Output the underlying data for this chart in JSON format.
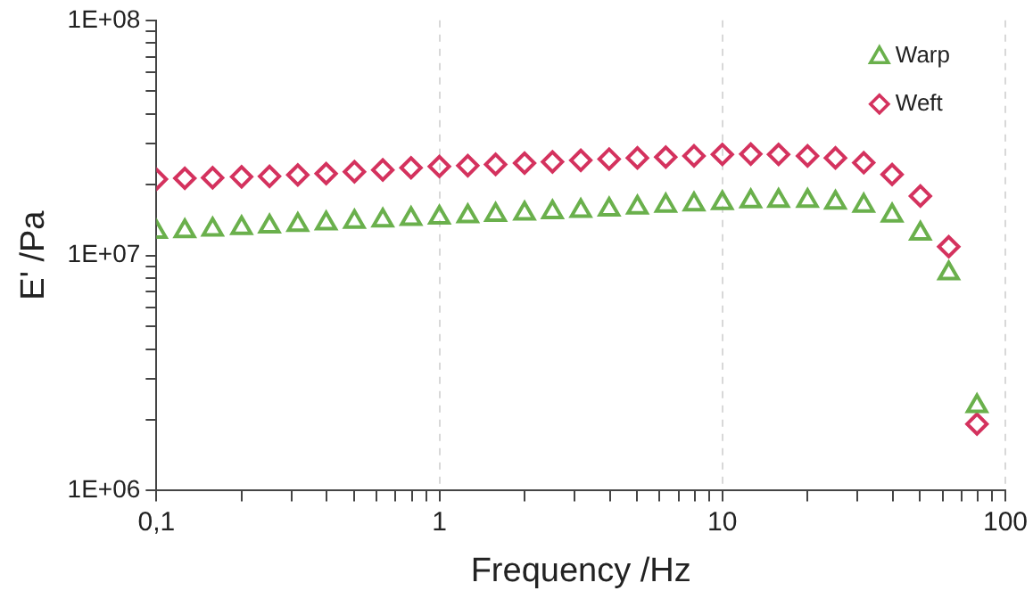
{
  "chart_data": {
    "type": "scatter",
    "xlabel": "Frequency /Hz",
    "ylabel": "E' /Pa",
    "log": "xy",
    "grid": "x",
    "legend": "top right",
    "x": [
      0.1,
      0.126,
      0.158,
      0.2,
      0.251,
      0.316,
      0.398,
      0.501,
      0.631,
      0.794,
      1,
      1.26,
      1.58,
      2,
      2.51,
      3.16,
      3.98,
      5.01,
      6.31,
      7.94,
      10,
      12.6,
      15.8,
      20,
      25.1,
      31.6,
      39.8,
      50.1,
      63.1,
      79.4
    ],
    "series": [
      {
        "name": "Warp",
        "color": "#6ab04c",
        "marker": "triangle",
        "values": [
          12600000,
          12700000,
          12900000,
          13100000,
          13300000,
          13500000,
          13700000,
          13900000,
          14100000,
          14300000,
          14500000,
          14700000,
          14900000,
          15100000,
          15300000,
          15500000,
          15700000,
          16000000,
          16300000,
          16500000,
          16700000,
          17000000,
          17100000,
          17100000,
          16800000,
          16300000,
          14800000,
          12400000,
          8410000,
          2290000
        ]
      },
      {
        "name": "Weft",
        "color": "#d4325e",
        "marker": "diamond",
        "values": [
          21100000,
          21300000,
          21400000,
          21600000,
          21700000,
          22000000,
          22300000,
          22700000,
          23100000,
          23600000,
          23900000,
          24100000,
          24400000,
          24700000,
          25000000,
          25400000,
          25700000,
          26000000,
          26200000,
          26500000,
          26900000,
          27000000,
          26900000,
          26500000,
          26000000,
          24800000,
          22100000,
          17900000,
          10900000,
          1920000
        ]
      }
    ],
    "xlim": [
      0.1,
      100
    ],
    "xticks": [
      {
        "value": 0.1,
        "label": "0,1"
      },
      {
        "value": 0.2,
        "label": null
      },
      {
        "value": 0.3,
        "label": null
      },
      {
        "value": 0.4,
        "label": null
      },
      {
        "value": 0.5,
        "label": null
      },
      {
        "value": 0.6,
        "label": null
      },
      {
        "value": 0.7,
        "label": null
      },
      {
        "value": 0.8,
        "label": null
      },
      {
        "value": 0.9,
        "label": null
      },
      1,
      {
        "value": 2,
        "label": null
      },
      {
        "value": 3,
        "label": null
      },
      {
        "value": 4,
        "label": null
      },
      {
        "value": 5,
        "label": null
      },
      {
        "value": 6,
        "label": null
      },
      {
        "value": 7,
        "label": null
      },
      {
        "value": 8,
        "label": null
      },
      {
        "value": 9,
        "label": null
      },
      10,
      {
        "value": 20,
        "label": null
      },
      {
        "value": 30,
        "label": null
      },
      {
        "value": 40,
        "label": null
      },
      {
        "value": 50,
        "label": null
      },
      {
        "value": 60,
        "label": null
      },
      {
        "value": 70,
        "label": null
      },
      {
        "value": 80,
        "label": null
      },
      {
        "value": 90,
        "label": null
      },
      100
    ],
    "ylim": [
      1000000,
      100000000
    ],
    "yticks": [
      {
        "value": 1000000,
        "label": "1E+06"
      },
      {
        "value": 2000000,
        "label": null
      },
      {
        "value": 3000000,
        "label": null
      },
      {
        "value": 4000000,
        "label": null
      },
      {
        "value": 5000000,
        "label": null
      },
      {
        "value": 6000000,
        "label": null
      },
      {
        "value": 7000000,
        "label": null
      },
      {
        "value": 8000000,
        "label": null
      },
      {
        "value": 9000000,
        "label": null
      },
      {
        "value": 10000000,
        "label": "1E+07"
      },
      {
        "value": 20000000,
        "label": null
      },
      {
        "value": 30000000,
        "label": null
      },
      {
        "value": 40000000,
        "label": null
      },
      {
        "value": 50000000,
        "label": null
      },
      {
        "value": 60000000,
        "label": null
      },
      {
        "value": 70000000,
        "label": null
      },
      {
        "value": 80000000,
        "label": null
      },
      {
        "value": 90000000,
        "label": null
      },
      {
        "value": 100000000,
        "label": "1E+08"
      }
    ]
  }
}
